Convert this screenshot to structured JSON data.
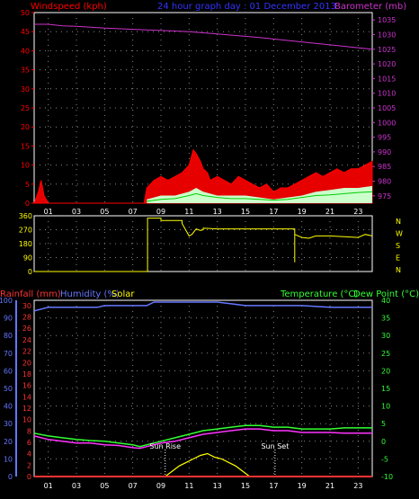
{
  "header": {
    "top_left": "Windspeed (kph)",
    "top_center": "24 hour graph day : 01 December 2013",
    "top_right": "Barometer (mb)",
    "bottom_left_rain": "Rainfall (mm)",
    "bottom_left_hum": "Humidity (%)",
    "bottom_left_solar": "Solar",
    "bottom_right_temp": "Temperature (°C)",
    "bottom_right_dew": "Dew Point (°C)"
  },
  "colors": {
    "wind": "#ff0000",
    "wind_bg": "#ff2222",
    "gust_fill": "#ccffcc",
    "green_line": "#00cc00",
    "baro": "#cc33cc",
    "dir": "#ffff00",
    "rain": "#ff3333",
    "humidity": "#6677ff",
    "solar": "#ffff00",
    "temp": "#ff33ff",
    "dew": "#33ff33",
    "title": "#3333ff",
    "grid": "#888888",
    "frame": "#ffffff"
  },
  "compass": [
    "N",
    "W",
    "S",
    "E",
    "N"
  ],
  "chart_data": [
    {
      "type": "line",
      "name_ref": "wind-baro-chart",
      "x_ticks": [
        "01",
        "03",
        "05",
        "07",
        "09",
        "11",
        "13",
        "15",
        "17",
        "19",
        "21",
        "23"
      ],
      "y_left_ticks": [
        "0",
        "5",
        "10",
        "15",
        "20",
        "25",
        "30",
        "35",
        "40",
        "45",
        "50"
      ],
      "ylim_left": [
        0,
        50
      ],
      "y_right_ticks": [
        "975",
        "980",
        "985",
        "990",
        "995",
        "1000",
        "1005",
        "1010",
        "1015",
        "1020",
        "1025",
        "1030",
        "1035"
      ],
      "ylim_right": [
        972.5,
        1037.5
      ],
      "xlim": [
        0,
        24
      ],
      "barometer": {
        "x": [
          0,
          1,
          2,
          3,
          4,
          5,
          6,
          7,
          8,
          9,
          10,
          11,
          12,
          13,
          14,
          15,
          16,
          17,
          18,
          19,
          20,
          21,
          22,
          23,
          24
        ],
        "y": [
          1033.5,
          1033.5,
          1033,
          1032.8,
          1032.5,
          1032.2,
          1032,
          1031.8,
          1031.6,
          1031.4,
          1031.2,
          1031,
          1030.6,
          1030.2,
          1029.8,
          1029.4,
          1029,
          1028.5,
          1028,
          1027.5,
          1027,
          1026.5,
          1026,
          1025.5,
          1025
        ]
      },
      "wind_speed": {
        "x": [
          0,
          0.3,
          0.5,
          0.7,
          1,
          4,
          7.8,
          8,
          8.5,
          9,
          9.5,
          10,
          10.5,
          11,
          11.3,
          11.5,
          11.8,
          12,
          12.3,
          12.5,
          13,
          13.5,
          14,
          14.5,
          15,
          15.5,
          16,
          16.5,
          17,
          17.5,
          18,
          18.5,
          19,
          19.5,
          20,
          20.5,
          21,
          21.5,
          22,
          22.5,
          23,
          23.5,
          24
        ],
        "y": [
          0,
          3,
          6,
          2,
          0,
          0,
          0,
          4,
          6,
          7,
          6,
          7,
          8,
          10,
          14,
          13,
          11,
          9,
          8,
          6,
          7,
          6,
          5,
          7,
          6,
          5,
          4,
          5,
          3,
          4,
          4,
          5,
          6,
          7,
          8,
          7,
          8,
          9,
          8,
          9,
          9,
          10,
          11
        ]
      },
      "wind_gust": {
        "x": [
          8,
          9,
          10,
          11,
          11.5,
          12,
          13,
          14,
          15,
          16,
          17,
          18,
          19,
          20,
          21,
          22,
          23,
          24
        ],
        "y": [
          1,
          2,
          2,
          3,
          4,
          3,
          2,
          2,
          2,
          1.5,
          1,
          1.5,
          2,
          3,
          3.5,
          4,
          4,
          4.5
        ]
      },
      "wind_avg": {
        "x": [
          8,
          9,
          10,
          11,
          11.5,
          12,
          13,
          14,
          15,
          16,
          17,
          18,
          19,
          20,
          21,
          22,
          23,
          24
        ],
        "y": [
          0.5,
          1,
          1.2,
          2,
          2.5,
          2,
          1.5,
          1.2,
          1.2,
          1,
          0.8,
          1,
          1.5,
          2,
          2.2,
          2.5,
          2.8,
          3
        ]
      }
    },
    {
      "type": "line",
      "name_ref": "direction-chart",
      "x_ticks": [
        "01",
        "03",
        "05",
        "07",
        "09",
        "11",
        "13",
        "15",
        "17",
        "19",
        "21",
        "23"
      ],
      "y_ticks": [
        "0",
        "90",
        "180",
        "270",
        "360"
      ],
      "ylim": [
        0,
        360
      ],
      "xlim": [
        0,
        24
      ],
      "direction": {
        "x": [
          0,
          8.05,
          8.05,
          9,
          9,
          10.5,
          10.5,
          11,
          11.2,
          11.5,
          11.8,
          12,
          12,
          13,
          14,
          15,
          16,
          17,
          18,
          18.5,
          18.5,
          18.5,
          19,
          19.5,
          20,
          21,
          22,
          23,
          23.5,
          24
        ],
        "y": [
          0,
          0,
          345,
          345,
          330,
          330,
          310,
          230,
          240,
          275,
          265,
          270,
          280,
          275,
          275,
          275,
          275,
          275,
          275,
          275,
          60,
          240,
          220,
          215,
          230,
          230,
          225,
          220,
          240,
          230
        ]
      }
    },
    {
      "type": "line",
      "name_ref": "rain-hum-temp-chart",
      "x_ticks": [
        "01",
        "03",
        "05",
        "07",
        "09",
        "11",
        "13",
        "15",
        "17",
        "19",
        "21",
        "23"
      ],
      "y_left_outer_ticks": [
        "0",
        "10",
        "20",
        "30",
        "40",
        "50",
        "60",
        "70",
        "80",
        "90",
        "100"
      ],
      "y_left_inner_ticks": [
        "0",
        "2",
        "4",
        "6",
        "8",
        "10",
        "12",
        "14",
        "16",
        "18",
        "20",
        "22",
        "24",
        "26",
        "28",
        "30"
      ],
      "y_right_ticks": [
        "-10",
        "-5",
        "0",
        "5",
        "10",
        "15",
        "20",
        "25",
        "30",
        "35",
        "40"
      ],
      "ylim_left_outer": [
        0,
        100
      ],
      "ylim_right": [
        -10,
        40
      ],
      "xlim": [
        0,
        24
      ],
      "humidity": {
        "x": [
          0,
          1,
          3,
          4.5,
          5,
          8,
          8.5,
          13,
          14,
          15,
          17,
          19,
          21,
          22,
          24
        ],
        "y": [
          94,
          96,
          96,
          96,
          97,
          97,
          99,
          99,
          98,
          97,
          97,
          97,
          96,
          96,
          96
        ]
      },
      "temperature": {
        "x": [
          0,
          1,
          2,
          3,
          4,
          5,
          6,
          7,
          7.5,
          8,
          9,
          10,
          11,
          12,
          13,
          14,
          15,
          16,
          17,
          18,
          19,
          20,
          21,
          22,
          23,
          24
        ],
        "y": [
          1.5,
          0.5,
          0,
          -0.5,
          -0.5,
          -1,
          -1.2,
          -1.8,
          -2,
          -1.5,
          -0.5,
          0,
          1,
          2,
          2.5,
          3,
          3.5,
          3.5,
          3,
          3,
          2.5,
          2.5,
          2.5,
          2.3,
          2.3,
          2.3
        ]
      },
      "dew_point": {
        "x": [
          0,
          1,
          2,
          3,
          4,
          5,
          6,
          7,
          7.5,
          8,
          9,
          10,
          11,
          12,
          13,
          14,
          15,
          16,
          17,
          18,
          19,
          20,
          21,
          22,
          23,
          24
        ],
        "y": [
          2.3,
          1.5,
          1,
          0.5,
          0.2,
          0,
          -0.5,
          -1,
          -1.5,
          -1,
          0,
          1,
          2,
          3,
          3.5,
          4,
          4.5,
          4.5,
          4,
          4,
          3.5,
          3.5,
          3.5,
          3.8,
          3.8,
          3.8
        ]
      },
      "solar": {
        "x": [
          0,
          9.3,
          9.8,
          10.3,
          10.8,
          11.3,
          11.8,
          12.3,
          12.8,
          13.3,
          13.8,
          14.3,
          14.8,
          15.3,
          17,
          24
        ],
        "y": [
          0,
          0,
          3,
          6,
          8,
          10,
          12,
          13,
          11,
          10,
          8,
          6,
          3,
          0,
          0,
          0
        ]
      },
      "rainfall": {
        "x": [
          0,
          24
        ],
        "y": [
          0,
          0
        ]
      },
      "annotations": [
        {
          "label": "Sun Rise",
          "x": 9.3
        },
        {
          "label": "Sun Set",
          "x": 17.1
        }
      ]
    }
  ]
}
